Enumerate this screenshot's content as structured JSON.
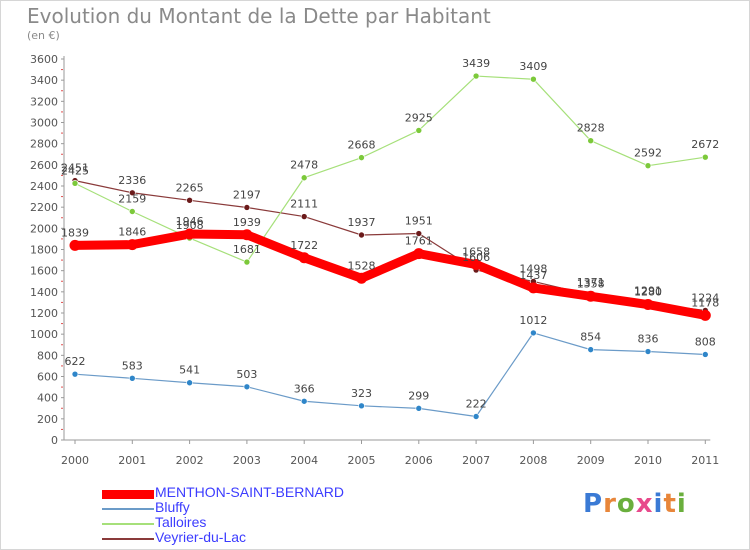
{
  "title": "Evolution du Montant de la Dette par Habitant",
  "unit": "(en €)",
  "logo": {
    "text": "Proxiti",
    "letter_colors": [
      "#3a7ad5",
      "#e8863a",
      "#6aaf3d",
      "#e84a8c",
      "#3a7ad5",
      "#e8863a",
      "#6aaf3d"
    ]
  },
  "chart_data": {
    "type": "line",
    "title": "Evolution du Montant de la Dette par Habitant",
    "ylabel": "(en €)",
    "xlabel": "",
    "categories": [
      "2000",
      "2001",
      "2002",
      "2003",
      "2004",
      "2005",
      "2006",
      "2007",
      "2008",
      "2009",
      "2010",
      "2011"
    ],
    "ylim": [
      0,
      3600
    ],
    "yticks": [
      0,
      200,
      400,
      600,
      800,
      1000,
      1200,
      1400,
      1600,
      1800,
      2000,
      2200,
      2400,
      2600,
      2800,
      3000,
      3200,
      3400,
      3600
    ],
    "grid": "none",
    "legend_position": "bottom-left",
    "series": [
      {
        "name": "MENTHON-SAINT-BERNARD",
        "color": "#ff0000",
        "width": 9,
        "dot_color": "#ff0000",
        "values": [
          1839,
          1846,
          1946,
          1939,
          1722,
          1528,
          1761,
          1658,
          1437,
          1358,
          1280,
          1178
        ],
        "labels": [
          "1839",
          "1846",
          "1946",
          "1939",
          "1722",
          "1528",
          "1761",
          "1658",
          "1437",
          "1358",
          "1280",
          "1178"
        ]
      },
      {
        "name": "Bluffy",
        "color": "#6b9bc8",
        "width": 1.2,
        "dot_color": "#2f86c9",
        "values": [
          622,
          583,
          541,
          503,
          366,
          323,
          299,
          222,
          1012,
          854,
          836,
          808
        ],
        "labels": [
          "622",
          "583",
          "541",
          "503",
          "366",
          "323",
          "299",
          "222",
          "1012",
          "854",
          "836",
          "808"
        ]
      },
      {
        "name": "Talloires",
        "color": "#a6e07a",
        "width": 1.2,
        "dot_color": "#7cc93a",
        "values": [
          2425,
          2159,
          1908,
          1681,
          2478,
          2668,
          2925,
          3439,
          3409,
          2828,
          2592,
          2672
        ],
        "labels": [
          "2425",
          "2159",
          "1908",
          "1681",
          "2478",
          "2668",
          "2925",
          "3439",
          "3409",
          "2828",
          "2592",
          "2672"
        ]
      },
      {
        "name": "Veyrier-du-Lac",
        "color": "#8a3a3a",
        "width": 1.2,
        "dot_color": "#6b1a1a",
        "values": [
          2451,
          2336,
          2265,
          2197,
          2111,
          1937,
          1951,
          1606,
          1498,
          1371,
          1291,
          1224
        ],
        "labels": [
          "2451",
          "2336",
          "2265",
          "2197",
          "2111",
          "1937",
          "1951",
          "1606",
          "1498",
          "1371",
          "1291",
          "1224"
        ]
      }
    ]
  }
}
